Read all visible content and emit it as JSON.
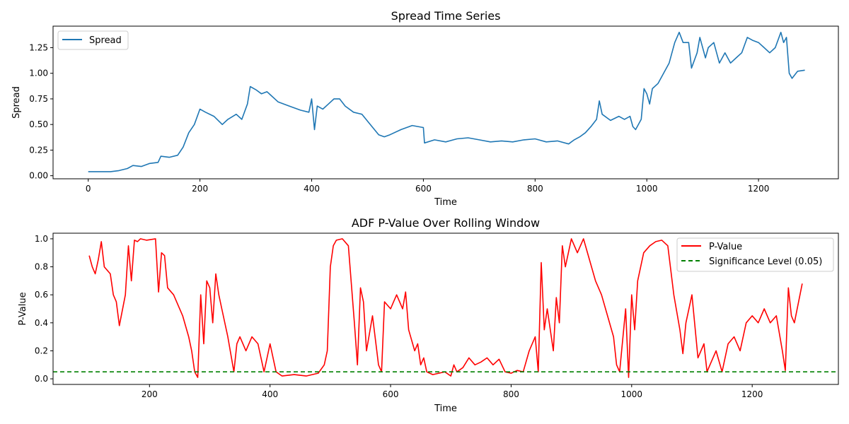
{
  "chart_data": [
    {
      "type": "line",
      "title": "Spread Time Series",
      "xlabel": "Time",
      "ylabel": "Spread",
      "xlim": [
        -63,
        1343
      ],
      "ylim": [
        -0.03,
        1.46
      ],
      "xticks": [
        0,
        200,
        400,
        600,
        800,
        1000,
        1200
      ],
      "yticks": [
        0.0,
        0.25,
        0.5,
        0.75,
        1.0,
        1.25
      ],
      "ytick_labels": [
        "0.00",
        "0.25",
        "0.50",
        "0.75",
        "1.00",
        "1.25"
      ],
      "grid": false,
      "legend_position": "top-left",
      "colors": {
        "spread": "#1f77b4"
      },
      "series": [
        {
          "name": "Spread",
          "x": [
            0,
            40,
            55,
            70,
            80,
            95,
            110,
            125,
            130,
            145,
            160,
            170,
            180,
            190,
            200,
            210,
            225,
            240,
            250,
            265,
            275,
            285,
            290,
            300,
            310,
            320,
            340,
            360,
            380,
            395,
            400,
            405,
            410,
            420,
            430,
            440,
            450,
            460,
            475,
            490,
            505,
            520,
            530,
            540,
            560,
            580,
            600,
            602,
            620,
            640,
            660,
            680,
            700,
            720,
            740,
            760,
            780,
            800,
            820,
            840,
            860,
            870,
            880,
            890,
            900,
            910,
            915,
            920,
            935,
            950,
            960,
            970,
            975,
            980,
            990,
            995,
            1000,
            1005,
            1010,
            1020,
            1030,
            1040,
            1050,
            1058,
            1065,
            1075,
            1080,
            1090,
            1095,
            1105,
            1110,
            1120,
            1130,
            1140,
            1150,
            1160,
            1170,
            1180,
            1190,
            1200,
            1210,
            1220,
            1230,
            1240,
            1245,
            1250,
            1255,
            1260,
            1270,
            1283
          ],
          "values": [
            0.04,
            0.04,
            0.05,
            0.07,
            0.1,
            0.09,
            0.12,
            0.13,
            0.19,
            0.18,
            0.2,
            0.28,
            0.42,
            0.5,
            0.65,
            0.62,
            0.58,
            0.5,
            0.55,
            0.6,
            0.55,
            0.7,
            0.87,
            0.84,
            0.8,
            0.82,
            0.72,
            0.68,
            0.64,
            0.62,
            0.75,
            0.45,
            0.68,
            0.65,
            0.7,
            0.75,
            0.75,
            0.68,
            0.62,
            0.6,
            0.5,
            0.4,
            0.38,
            0.4,
            0.45,
            0.49,
            0.47,
            0.32,
            0.35,
            0.33,
            0.36,
            0.37,
            0.35,
            0.33,
            0.34,
            0.33,
            0.35,
            0.36,
            0.33,
            0.34,
            0.31,
            0.35,
            0.38,
            0.42,
            0.48,
            0.55,
            0.73,
            0.6,
            0.54,
            0.58,
            0.55,
            0.58,
            0.48,
            0.45,
            0.55,
            0.85,
            0.8,
            0.7,
            0.85,
            0.9,
            1.0,
            1.1,
            1.3,
            1.4,
            1.3,
            1.3,
            1.05,
            1.2,
            1.35,
            1.15,
            1.25,
            1.3,
            1.1,
            1.2,
            1.1,
            1.15,
            1.2,
            1.35,
            1.32,
            1.3,
            1.25,
            1.2,
            1.25,
            1.4,
            1.3,
            1.35,
            1.0,
            0.95,
            1.02,
            1.03
          ]
        }
      ]
    },
    {
      "type": "line",
      "title": "ADF P-Value Over Rolling Window",
      "xlabel": "Time",
      "ylabel": "P-Value",
      "xlim": [
        40,
        1343
      ],
      "ylim": [
        -0.04,
        1.04
      ],
      "xticks": [
        200,
        400,
        600,
        800,
        1000,
        1200
      ],
      "yticks": [
        0.0,
        0.2,
        0.4,
        0.6,
        0.8,
        1.0
      ],
      "ytick_labels": [
        "0.0",
        "0.2",
        "0.4",
        "0.6",
        "0.8",
        "1.0"
      ],
      "grid": false,
      "legend_position": "top-right",
      "colors": {
        "pvalue": "#ff0000",
        "significance": "#008000"
      },
      "series": [
        {
          "name": "P-Value",
          "x": [
            100,
            105,
            110,
            115,
            120,
            125,
            135,
            140,
            145,
            150,
            160,
            165,
            170,
            175,
            180,
            185,
            195,
            210,
            215,
            220,
            225,
            230,
            240,
            255,
            265,
            270,
            275,
            280,
            285,
            290,
            295,
            300,
            305,
            310,
            315,
            320,
            330,
            340,
            345,
            350,
            360,
            370,
            380,
            390,
            400,
            410,
            420,
            440,
            460,
            470,
            480,
            490,
            495,
            500,
            505,
            510,
            520,
            530,
            540,
            545,
            550,
            555,
            560,
            570,
            580,
            585,
            590,
            600,
            605,
            610,
            620,
            625,
            630,
            640,
            645,
            650,
            655,
            660,
            670,
            690,
            700,
            705,
            710,
            720,
            730,
            740,
            750,
            760,
            770,
            780,
            790,
            800,
            810,
            820,
            830,
            840,
            845,
            850,
            855,
            860,
            870,
            875,
            880,
            885,
            890,
            900,
            910,
            920,
            930,
            940,
            950,
            960,
            970,
            975,
            980,
            990,
            995,
            1000,
            1005,
            1010,
            1020,
            1030,
            1040,
            1050,
            1060,
            1070,
            1080,
            1085,
            1090,
            1100,
            1110,
            1120,
            1125,
            1130,
            1140,
            1150,
            1160,
            1170,
            1180,
            1190,
            1200,
            1210,
            1220,
            1230,
            1240,
            1250,
            1255,
            1260,
            1265,
            1270,
            1283
          ],
          "values": [
            0.88,
            0.8,
            0.75,
            0.85,
            0.98,
            0.8,
            0.75,
            0.6,
            0.55,
            0.38,
            0.6,
            0.95,
            0.7,
            0.99,
            0.98,
            1.0,
            0.99,
            1.0,
            0.62,
            0.9,
            0.88,
            0.65,
            0.6,
            0.45,
            0.3,
            0.2,
            0.05,
            0.01,
            0.6,
            0.25,
            0.7,
            0.65,
            0.4,
            0.75,
            0.6,
            0.5,
            0.3,
            0.05,
            0.25,
            0.3,
            0.2,
            0.3,
            0.25,
            0.05,
            0.25,
            0.05,
            0.02,
            0.03,
            0.02,
            0.03,
            0.04,
            0.1,
            0.2,
            0.8,
            0.95,
            0.99,
            1.0,
            0.95,
            0.4,
            0.1,
            0.65,
            0.55,
            0.2,
            0.45,
            0.1,
            0.05,
            0.55,
            0.5,
            0.55,
            0.6,
            0.5,
            0.62,
            0.35,
            0.2,
            0.25,
            0.1,
            0.15,
            0.05,
            0.03,
            0.05,
            0.02,
            0.1,
            0.05,
            0.08,
            0.15,
            0.1,
            0.12,
            0.15,
            0.1,
            0.14,
            0.05,
            0.04,
            0.06,
            0.05,
            0.2,
            0.3,
            0.05,
            0.83,
            0.35,
            0.5,
            0.2,
            0.58,
            0.4,
            0.95,
            0.8,
            1.0,
            0.9,
            1.0,
            0.85,
            0.7,
            0.6,
            0.45,
            0.3,
            0.1,
            0.05,
            0.5,
            0.01,
            0.6,
            0.35,
            0.7,
            0.9,
            0.95,
            0.98,
            0.99,
            0.95,
            0.6,
            0.35,
            0.18,
            0.4,
            0.6,
            0.15,
            0.25,
            0.05,
            0.1,
            0.2,
            0.05,
            0.25,
            0.3,
            0.2,
            0.4,
            0.45,
            0.4,
            0.5,
            0.4,
            0.45,
            0.2,
            0.06,
            0.65,
            0.45,
            0.4,
            0.68
          ]
        },
        {
          "name": "Significance Level (0.05)",
          "y": 0.05,
          "style": "dashed"
        }
      ]
    }
  ]
}
